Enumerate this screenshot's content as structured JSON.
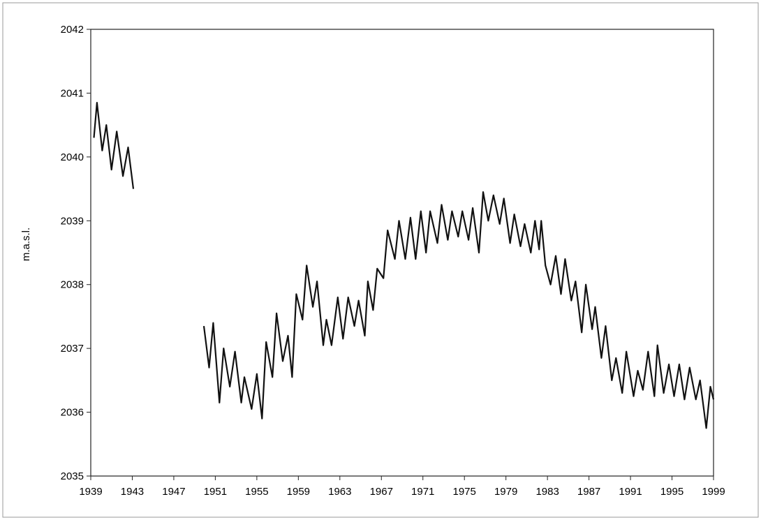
{
  "chart_data": {
    "type": "line",
    "y_label": "m.a.s.l.",
    "x": [
      1939.3,
      1939.6,
      1940.1,
      1940.5,
      1941.0,
      1941.5,
      1942.1,
      1942.6,
      1943.1,
      1946,
      1949.9,
      1950.4,
      1950.8,
      1951.4,
      1951.8,
      1952.4,
      1952.9,
      1953.5,
      1953.8,
      1954.5,
      1955.0,
      1955.5,
      1955.9,
      1956.5,
      1956.9,
      1957.5,
      1958.0,
      1958.4,
      1958.8,
      1959.4,
      1959.8,
      1960.4,
      1960.8,
      1961.4,
      1961.7,
      1962.2,
      1962.8,
      1963.3,
      1963.8,
      1964.4,
      1964.8,
      1965.4,
      1965.7,
      1966.2,
      1966.6,
      1967.2,
      1967.6,
      1968.3,
      1968.7,
      1969.3,
      1969.8,
      1970.3,
      1970.8,
      1971.3,
      1971.7,
      1972.4,
      1972.8,
      1973.4,
      1973.8,
      1974.4,
      1974.8,
      1975.4,
      1975.8,
      1976.4,
      1976.8,
      1977.3,
      1977.8,
      1978.4,
      1978.8,
      1979.4,
      1979.8,
      1980.4,
      1980.8,
      1981.4,
      1981.8,
      1982.2,
      1982.4,
      1982.8,
      1983.3,
      1983.8,
      1984.3,
      1984.7,
      1985.3,
      1985.7,
      1986.3,
      1986.7,
      1987.3,
      1987.6,
      1988.2,
      1988.6,
      1989.2,
      1989.6,
      1990.2,
      1990.6,
      1991.3,
      1991.7,
      1992.2,
      1992.7,
      1993.3,
      1993.6,
      1994.2,
      1994.7,
      1995.2,
      1995.7,
      1996.2,
      1996.7,
      1997.3,
      1997.7,
      1998.3,
      1998.7,
      1999.0
    ],
    "series": [
      {
        "color": "#111111",
        "values": [
          2040.3,
          2040.85,
          2040.1,
          2040.5,
          2039.8,
          2040.4,
          2039.7,
          2040.15,
          2039.5,
          null,
          2037.35,
          2036.7,
          2037.4,
          2036.15,
          2037.0,
          2036.4,
          2036.95,
          2036.15,
          2036.55,
          2036.05,
          2036.6,
          2035.9,
          2037.1,
          2036.55,
          2037.55,
          2036.8,
          2037.2,
          2036.55,
          2037.85,
          2037.45,
          2038.3,
          2037.65,
          2038.05,
          2037.05,
          2037.45,
          2037.05,
          2037.8,
          2037.15,
          2037.8,
          2037.35,
          2037.75,
          2037.2,
          2038.05,
          2037.6,
          2038.25,
          2038.1,
          2038.85,
          2038.4,
          2039.0,
          2038.4,
          2039.05,
          2038.4,
          2039.15,
          2038.5,
          2039.15,
          2038.65,
          2039.25,
          2038.7,
          2039.15,
          2038.75,
          2039.15,
          2038.7,
          2039.2,
          2038.5,
          2039.45,
          2039.0,
          2039.4,
          2038.95,
          2039.35,
          2038.65,
          2039.1,
          2038.6,
          2038.95,
          2038.5,
          2039.0,
          2038.55,
          2039.0,
          2038.3,
          2038.0,
          2038.45,
          2037.85,
          2038.4,
          2037.75,
          2038.05,
          2037.25,
          2038.0,
          2037.3,
          2037.65,
          2036.85,
          2037.35,
          2036.5,
          2036.85,
          2036.3,
          2036.95,
          2036.25,
          2036.65,
          2036.35,
          2036.95,
          2036.25,
          2037.05,
          2036.3,
          2036.75,
          2036.25,
          2036.75,
          2036.2,
          2036.7,
          2036.2,
          2036.5,
          2035.75,
          2036.4,
          2036.2
        ]
      }
    ],
    "xlim": [
      1939,
      1999
    ],
    "xticks": [
      1939,
      1943,
      1947,
      1951,
      1955,
      1959,
      1963,
      1967,
      1971,
      1975,
      1979,
      1983,
      1987,
      1991,
      1995,
      1999
    ],
    "ylim": [
      2035,
      2042
    ],
    "yticks": [
      2035,
      2036,
      2037,
      2038,
      2039,
      2040,
      2041,
      2042
    ]
  }
}
